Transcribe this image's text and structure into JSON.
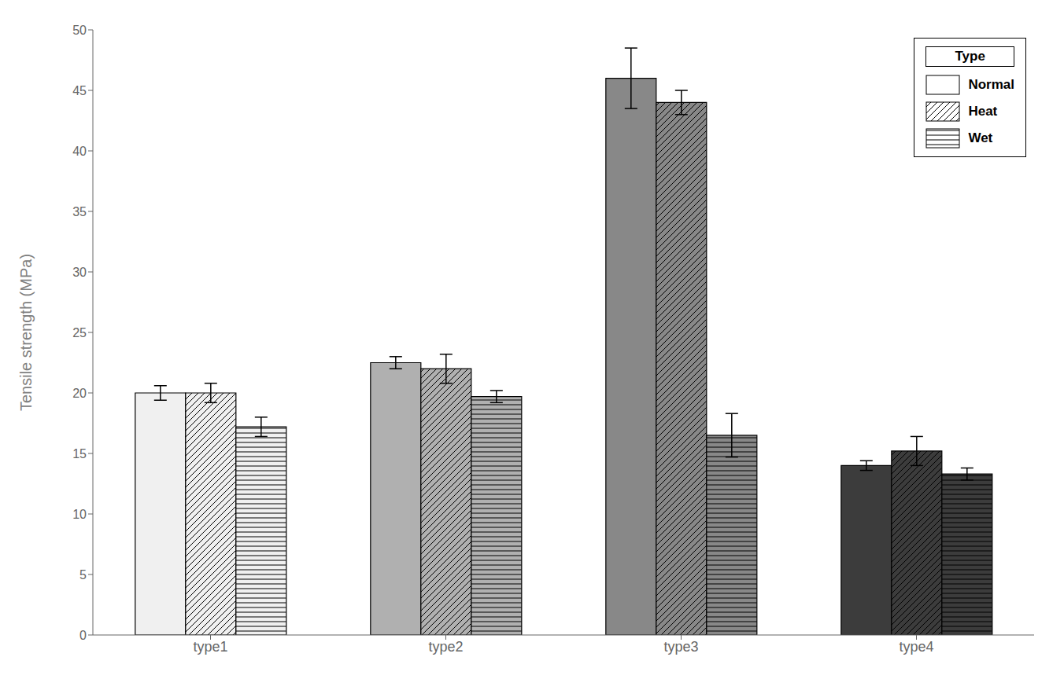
{
  "chart_data": {
    "type": "bar",
    "categories": [
      "type1",
      "type2",
      "type3",
      "type4"
    ],
    "series": [
      {
        "name": "Normal",
        "values": [
          20.0,
          22.5,
          46.0,
          14.0
        ],
        "errors": [
          0.6,
          0.5,
          2.5,
          0.4
        ],
        "colors": [
          "#f0f0f0",
          "#b0b0b0",
          "#888888",
          "#3c3c3c"
        ]
      },
      {
        "name": "Heat",
        "values": [
          20.0,
          22.0,
          44.0,
          15.2
        ],
        "errors": [
          0.8,
          1.2,
          1.0,
          1.2
        ],
        "colors": [
          "#f0f0f0",
          "#b0b0b0",
          "#888888",
          "#3c3c3c"
        ]
      },
      {
        "name": "Wet",
        "values": [
          17.2,
          19.7,
          16.5,
          13.3
        ],
        "errors": [
          0.8,
          0.5,
          1.8,
          0.5
        ],
        "colors": [
          "#f0f0f0",
          "#b0b0b0",
          "#888888",
          "#3c3c3c"
        ]
      }
    ],
    "ylabel": "Tensile strength (MPa)",
    "ylim": [
      0,
      50
    ],
    "yticks": [
      0,
      5,
      10,
      15,
      20,
      25,
      30,
      35,
      40,
      45,
      50
    ],
    "legend_title": "Type",
    "legend": "upper right",
    "grid": false
  }
}
